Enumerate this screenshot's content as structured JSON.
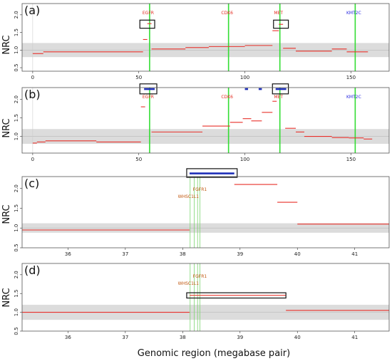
{
  "figure": {
    "ylabel": "NRC",
    "xlabel": "Genomic region (megabase pair)",
    "colors": {
      "segment": "#e8302a",
      "gene_line": "#33dd33",
      "gene_line_thin": "#7cd66f",
      "highlight": "#1f2fb8",
      "band": "#dcdcdc",
      "frame": "#555555",
      "gene_red": "#e32b1f",
      "gene_blue": "#2d2de0",
      "gene_orange": "#c0560e"
    }
  },
  "chart_data": [
    {
      "type": "line",
      "panel": "(a)",
      "xlim": [
        -5,
        168
      ],
      "ylim": [
        0.4,
        2.32
      ],
      "xticks": [
        0,
        50,
        100,
        150
      ],
      "yticks": [
        0.5,
        1.0,
        1.5,
        2.0
      ],
      "grid": false,
      "normal_band": [
        0.8,
        1.2
      ],
      "genes": [
        {
          "name": "EGFR",
          "x": 55.1,
          "color": "red"
        },
        {
          "name": "CDK6",
          "x": 92.3,
          "color": "red"
        },
        {
          "name": "MET",
          "x": 116.5,
          "color": "red"
        },
        {
          "name": "KMT2C",
          "x": 152.0,
          "color": "blue"
        }
      ],
      "segments": [
        {
          "x0": 0,
          "x1": 5,
          "y": 0.9
        },
        {
          "x0": 5,
          "x1": 52,
          "y": 0.95
        },
        {
          "x0": 52,
          "x1": 54,
          "y": 1.3
        },
        {
          "x0": 54,
          "x1": 56,
          "y": 1.75
        },
        {
          "x0": 56,
          "x1": 72,
          "y": 1.03
        },
        {
          "x0": 72,
          "x1": 83,
          "y": 1.07
        },
        {
          "x0": 83,
          "x1": 100,
          "y": 1.1
        },
        {
          "x0": 100,
          "x1": 113,
          "y": 1.13
        },
        {
          "x0": 113,
          "x1": 116,
          "y": 1.55
        },
        {
          "x0": 116,
          "x1": 118,
          "y": 1.73
        },
        {
          "x0": 118,
          "x1": 124,
          "y": 1.05
        },
        {
          "x0": 124,
          "x1": 141,
          "y": 0.97
        },
        {
          "x0": 141,
          "x1": 148,
          "y": 1.03
        },
        {
          "x0": 148,
          "x1": 158,
          "y": 0.95
        }
      ],
      "boxes": [
        {
          "x0": 50.5,
          "x1": 57.5,
          "y0": 1.62,
          "y1": 1.85,
          "filled": false
        },
        {
          "x0": 113.5,
          "x1": 120.5,
          "y0": 1.62,
          "y1": 1.85,
          "filled": false
        }
      ]
    },
    {
      "type": "line",
      "panel": "(b)",
      "xlim": [
        -5,
        168
      ],
      "ylim": [
        0.55,
        2.32
      ],
      "xticks": [
        0,
        50,
        100,
        150
      ],
      "yticks": [
        1.0,
        1.5,
        2.0
      ],
      "grid": false,
      "normal_band": [
        0.8,
        1.2
      ],
      "genes": [
        {
          "name": "EGFR",
          "x": 55.1,
          "color": "red"
        },
        {
          "name": "CDK6",
          "x": 92.3,
          "color": "red"
        },
        {
          "name": "MET",
          "x": 116.5,
          "color": "red"
        },
        {
          "name": "KMT2C",
          "x": 152.0,
          "color": "blue"
        }
      ],
      "segments": [
        {
          "x0": 0,
          "x1": 2,
          "y": 0.82
        },
        {
          "x0": 2,
          "x1": 6,
          "y": 0.85
        },
        {
          "x0": 6,
          "x1": 30,
          "y": 0.88
        },
        {
          "x0": 30,
          "x1": 51,
          "y": 0.85
        },
        {
          "x0": 51,
          "x1": 53,
          "y": 1.8
        },
        {
          "x0": 56,
          "x1": 80,
          "y": 1.12
        },
        {
          "x0": 80,
          "x1": 93,
          "y": 1.28
        },
        {
          "x0": 93,
          "x1": 99,
          "y": 1.38
        },
        {
          "x0": 99,
          "x1": 103,
          "y": 1.48
        },
        {
          "x0": 103,
          "x1": 108,
          "y": 1.42
        },
        {
          "x0": 108,
          "x1": 113,
          "y": 1.65
        },
        {
          "x0": 113,
          "x1": 115,
          "y": 1.95
        },
        {
          "x0": 119,
          "x1": 124,
          "y": 1.22
        },
        {
          "x0": 124,
          "x1": 128,
          "y": 1.12
        },
        {
          "x0": 128,
          "x1": 141,
          "y": 1.0
        },
        {
          "x0": 141,
          "x1": 149,
          "y": 0.97
        },
        {
          "x0": 149,
          "x1": 156,
          "y": 0.96
        },
        {
          "x0": 156,
          "x1": 160,
          "y": 0.93
        }
      ],
      "highlights": [
        {
          "x0": 52.5,
          "x1": 57.5,
          "y": 2.28
        },
        {
          "x0": 114.5,
          "x1": 119.5,
          "y": 2.28
        },
        {
          "x0": 100,
          "x1": 101.5,
          "y": 2.28
        },
        {
          "x0": 106.5,
          "x1": 108,
          "y": 2.28
        }
      ],
      "boxes": [
        {
          "x0": 50.5,
          "x1": 58.5,
          "y0": 2.15,
          "y1": 2.42,
          "filled": false
        },
        {
          "x0": 113,
          "x1": 120.5,
          "y0": 2.15,
          "y1": 2.42,
          "filled": false
        }
      ]
    },
    {
      "type": "line",
      "panel": "(c)",
      "xlim": [
        35.2,
        41.6
      ],
      "ylim": [
        0.5,
        2.3
      ],
      "xticks": [
        36,
        37,
        38,
        39,
        40,
        41
      ],
      "yticks": [
        0.5,
        1.0,
        1.5,
        2.0
      ],
      "grid": false,
      "normal_band": [
        0.88,
        1.12
      ],
      "genes": [
        {
          "name": "FGFR1",
          "x": 38.28,
          "color": "orange"
        },
        {
          "name": "WHSC1L1",
          "x": 38.17,
          "color": "orange"
        }
      ],
      "gene_lines": [
        38.13,
        38.2,
        38.26,
        38.3
      ],
      "segments": [
        {
          "x0": 35.2,
          "x1": 38.12,
          "y": 0.95
        },
        {
          "x0": 38.12,
          "x1": 38.9,
          "y": 2.38
        },
        {
          "x0": 38.9,
          "x1": 39.65,
          "y": 2.1
        },
        {
          "x0": 39.65,
          "x1": 40.0,
          "y": 1.65
        },
        {
          "x0": 40.0,
          "x1": 41.6,
          "y": 1.1
        }
      ],
      "highlights": [
        {
          "x0": 38.12,
          "x1": 38.9,
          "y": 2.38
        }
      ],
      "boxes": [
        {
          "x0": 38.07,
          "x1": 38.95,
          "y0": 2.28,
          "y1": 2.5,
          "filled": false
        }
      ]
    },
    {
      "type": "line",
      "panel": "(d)",
      "xlim": [
        35.2,
        41.6
      ],
      "ylim": [
        0.5,
        2.3
      ],
      "xticks": [
        36,
        37,
        38,
        39,
        40,
        41
      ],
      "yticks": [
        0.5,
        1.0,
        1.5,
        2.0
      ],
      "grid": false,
      "normal_band": [
        0.8,
        1.2
      ],
      "genes": [
        {
          "name": "FGFR1",
          "x": 38.28,
          "color": "orange"
        },
        {
          "name": "WHSC1L1",
          "x": 38.17,
          "color": "orange"
        }
      ],
      "gene_lines": [
        38.13,
        38.2,
        38.26,
        38.3
      ],
      "segments": [
        {
          "x0": 35.2,
          "x1": 38.12,
          "y": 1.0
        },
        {
          "x0": 38.12,
          "x1": 39.8,
          "y": 1.45
        },
        {
          "x0": 39.8,
          "x1": 41.6,
          "y": 1.05
        }
      ],
      "boxes": [
        {
          "x0": 38.07,
          "x1": 39.8,
          "y0": 1.38,
          "y1": 1.52,
          "filled": false
        }
      ]
    }
  ]
}
